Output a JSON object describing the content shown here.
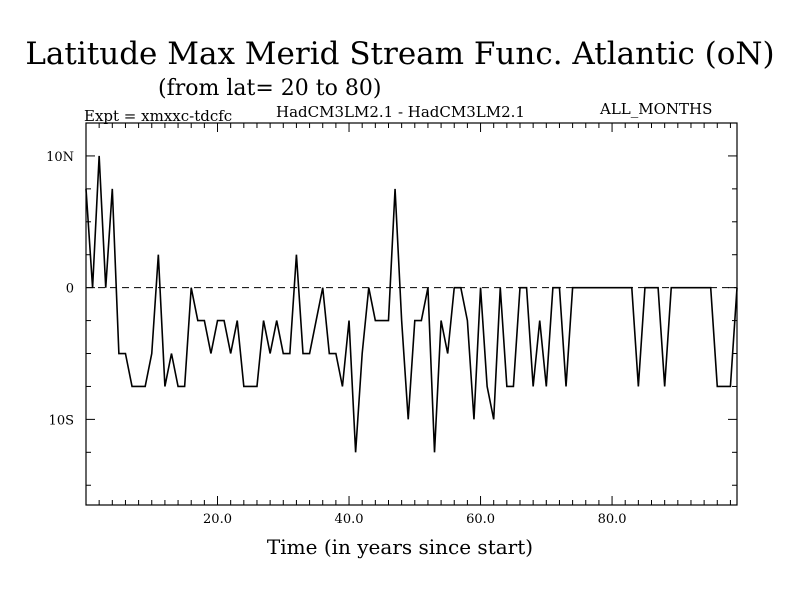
{
  "header": {
    "title": "Latitude Max Merid Stream Func. Atlantic (oN)",
    "subtitle": "(from lat= 20 to 80)",
    "expt": "Expt = xmxxc-tdcfc",
    "model": "HadCM3LM2.1 - HadCM3LM2.1",
    "months": "ALL_MONTHS"
  },
  "chart_data": {
    "type": "line",
    "title": "Latitude Max Merid Stream Func. Atlantic (oN)",
    "subtitle": "(from lat= 20 to 80)",
    "xlabel": "Time (in years since start)",
    "ylabel": "",
    "xlim": [
      0,
      99
    ],
    "ylim": [
      -16.5,
      12.5
    ],
    "x_ticks": [
      20,
      40,
      60,
      80
    ],
    "x_tick_labels": [
      "20.0",
      "40.0",
      "60.0",
      "80.0"
    ],
    "y_ticks": [
      10,
      0,
      -10
    ],
    "y_tick_labels": [
      "10N",
      "0",
      "10S"
    ],
    "zero_line": "dashed",
    "grid": false,
    "series": [
      {
        "x": [
          0,
          1,
          2,
          3,
          4,
          5,
          6,
          7,
          8,
          9,
          10,
          11,
          12,
          13,
          14,
          15,
          16,
          17,
          18,
          19,
          20,
          21,
          22,
          23,
          24,
          25,
          26,
          27,
          28,
          29,
          30,
          31,
          32,
          33,
          34,
          35,
          36,
          37,
          38,
          39,
          40,
          41,
          42,
          43,
          44,
          45,
          46,
          47,
          48,
          49,
          50,
          51,
          52,
          53,
          54,
          55,
          56,
          57,
          58,
          59,
          60,
          61,
          62,
          63,
          64,
          65,
          66,
          67,
          68,
          69,
          70,
          71,
          72,
          73,
          74,
          75,
          76,
          77,
          78,
          79,
          80,
          81,
          82,
          83,
          84,
          85,
          86,
          87,
          88,
          89,
          90,
          91,
          92,
          93,
          94,
          95,
          96,
          97,
          98,
          99
        ],
        "values": [
          7.5,
          0,
          10,
          0,
          7.5,
          -5,
          -5,
          -7.5,
          -7.5,
          -7.5,
          -5,
          2.5,
          -7.5,
          -5,
          -7.5,
          -7.5,
          0,
          -2.5,
          -2.5,
          -5,
          -2.5,
          -2.5,
          -5,
          -2.5,
          -7.5,
          -7.5,
          -7.5,
          -2.5,
          -5,
          -2.5,
          -5,
          -5,
          2.5,
          -5,
          -5,
          -2.5,
          0,
          -5,
          -5,
          -7.5,
          -2.5,
          -12.5,
          -5,
          0,
          -2.5,
          -2.5,
          -2.5,
          7.5,
          -2.5,
          -10,
          -2.5,
          -2.5,
          0,
          -12.5,
          -2.5,
          -5,
          0,
          0,
          -2.5,
          -10,
          0,
          -7.5,
          -10,
          0,
          -7.5,
          -7.5,
          0,
          0,
          -7.5,
          -2.5,
          -7.5,
          0,
          0,
          -7.5,
          0,
          0,
          0,
          0,
          0,
          0,
          0,
          0,
          0,
          0,
          -7.5,
          0,
          0,
          0,
          -7.5,
          0,
          0,
          0,
          0,
          0,
          0,
          0,
          -7.5,
          -7.5,
          -7.5,
          0
        ]
      }
    ]
  }
}
